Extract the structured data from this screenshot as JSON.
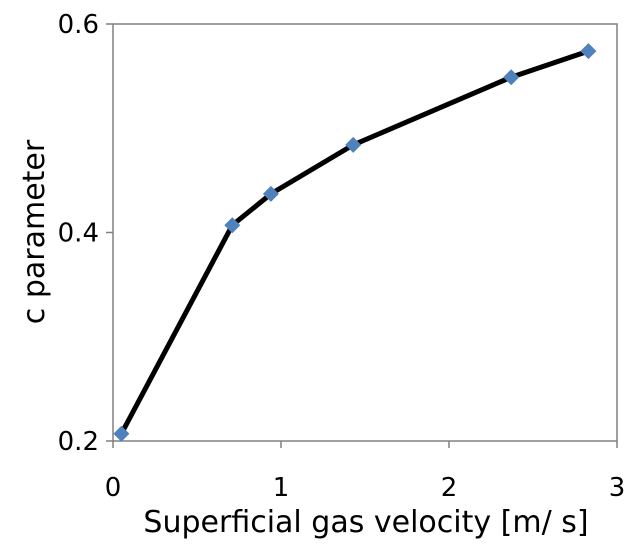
{
  "chart_data": {
    "type": "line",
    "title": "",
    "xlabel": "Superficial gas velocity [m/ s]",
    "ylabel": "c parameter",
    "xlim": [
      0,
      3
    ],
    "ylim": [
      0.2,
      0.6
    ],
    "x_ticks": [
      0,
      1,
      2,
      3
    ],
    "x_tick_labels": [
      "0",
      "1",
      "2",
      "3"
    ],
    "y_ticks": [
      0.2,
      0.4,
      0.6
    ],
    "y_tick_labels": [
      "0.2",
      "0.4",
      "0.6"
    ],
    "grid": false,
    "legend": "none",
    "series": [
      {
        "x": [
          0.05,
          0.71,
          0.94,
          1.43,
          2.37,
          2.83
        ],
        "y": [
          0.207,
          0.407,
          0.437,
          0.484,
          0.549,
          0.574
        ],
        "line_color": "#000000",
        "marker": "diamond",
        "marker_color": "#4f81bd"
      }
    ]
  }
}
